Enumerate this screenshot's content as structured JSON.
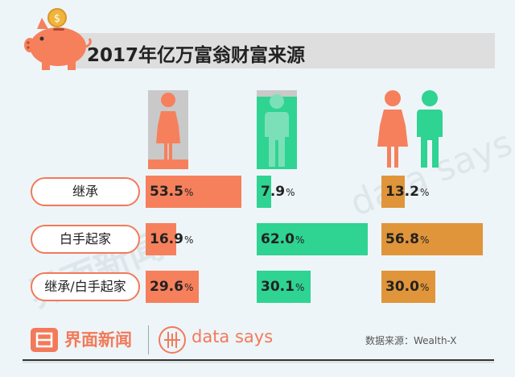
{
  "title": "2017年亿万富翁财富来源",
  "chart_data": {
    "type": "bar",
    "title": "2017年亿万富翁财富来源",
    "categories": [
      "继承",
      "白手起家",
      "继承/白手起家"
    ],
    "series": [
      {
        "values": [
          53.5,
          16.9,
          29.6
        ],
        "color": "#f6805c",
        "icon": "female-figure-icon"
      },
      {
        "values": [
          7.9,
          62.0,
          30.1
        ],
        "color": "#2fd392",
        "icon": "male-figure-icon"
      },
      {
        "values": [
          13.2,
          56.8,
          30.0
        ],
        "color": "#e0953a",
        "icon": "female-and-male-figures-icon"
      }
    ],
    "value_labels": [
      [
        "53.5",
        "16.9",
        "29.6"
      ],
      [
        "7.9",
        "62.0",
        "30.1"
      ],
      [
        "13.2",
        "56.8",
        "30.0"
      ]
    ],
    "unit": "%"
  },
  "footer": {
    "brand_cn": "界面新闻",
    "brand_en": "data says",
    "source": "数据来源：Wealth-X"
  },
  "watermarks": {
    "cn": "界面新闻",
    "en": "data says"
  },
  "icons": [
    "piggy-bank-icon",
    "coin-icon",
    "female-figure-icon",
    "male-figure-icon",
    "jiemian-logo-icon",
    "data-says-icon"
  ]
}
